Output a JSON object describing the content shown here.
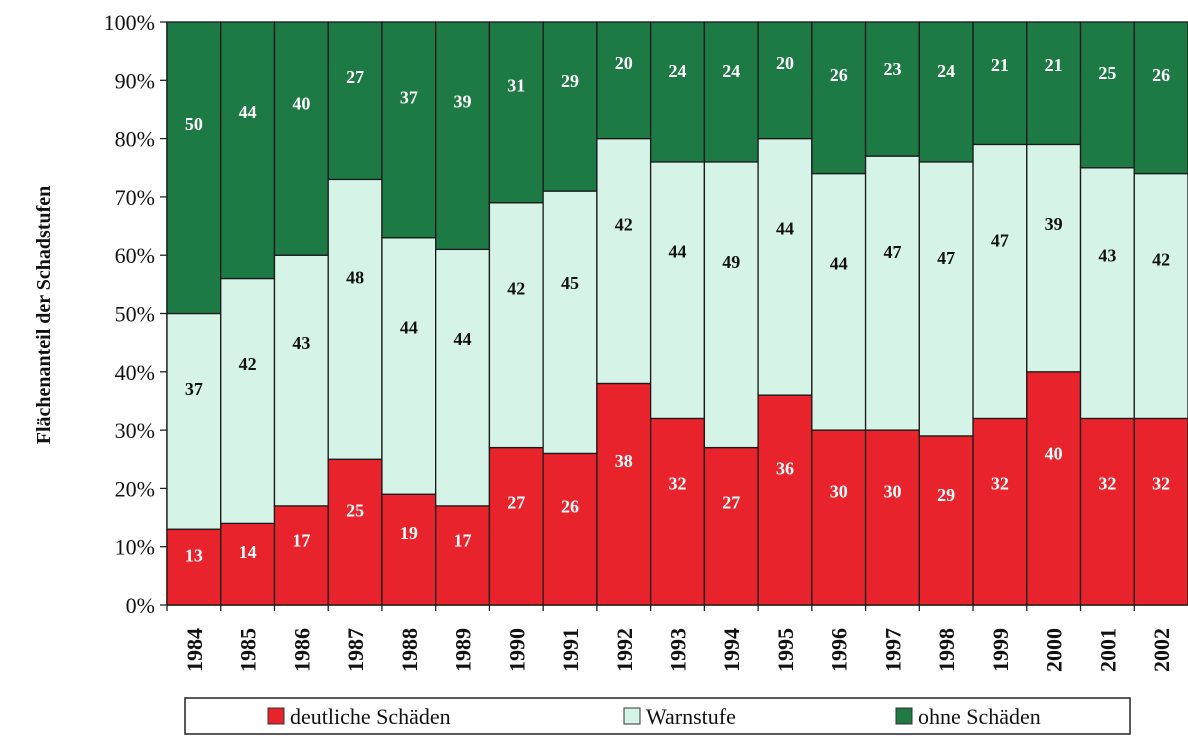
{
  "chart_data": {
    "type": "bar",
    "stacked": true,
    "percent": true,
    "title": "",
    "xlabel": "",
    "ylabel": "Flächenanteil der Schadstufen",
    "ylim": [
      0,
      100
    ],
    "yticks": [
      "0%",
      "10%",
      "20%",
      "30%",
      "40%",
      "50%",
      "60%",
      "70%",
      "80%",
      "90%",
      "100%"
    ],
    "grid": false,
    "legend_position": "bottom",
    "categories": [
      "1984",
      "1985",
      "1986",
      "1987",
      "1988",
      "1989",
      "1990",
      "1991",
      "1992",
      "1993",
      "1994",
      "1995",
      "1996",
      "1997",
      "1998",
      "1999",
      "2000",
      "2001",
      "2002"
    ],
    "series": [
      {
        "name": "deutliche Schäden",
        "color": "#e8232c",
        "label_color": "#ffffff",
        "values": [
          13,
          14,
          17,
          25,
          19,
          17,
          27,
          26,
          38,
          32,
          27,
          36,
          30,
          30,
          29,
          32,
          40,
          32,
          32
        ]
      },
      {
        "name": "Warnstufe",
        "color": "#d6f3e8",
        "label_color": "#111111",
        "values": [
          37,
          42,
          43,
          48,
          44,
          44,
          42,
          45,
          42,
          44,
          49,
          44,
          44,
          47,
          47,
          47,
          39,
          43,
          42
        ]
      },
      {
        "name": "ohne Schäden",
        "color": "#1d7a45",
        "label_color": "#ffffff",
        "values": [
          50,
          44,
          40,
          27,
          37,
          39,
          31,
          29,
          20,
          24,
          24,
          20,
          26,
          23,
          24,
          21,
          21,
          25,
          26
        ]
      }
    ]
  }
}
